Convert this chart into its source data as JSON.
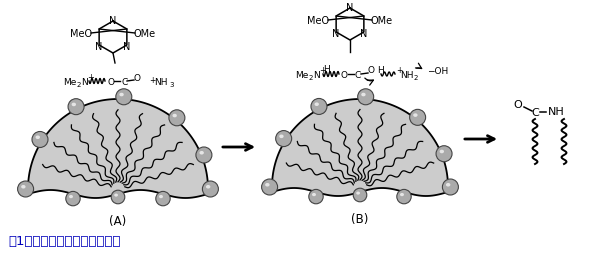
{
  "caption": "図1．　界面での脱水縮合反応",
  "caption_color": "#0000BB",
  "fig_width": 6.0,
  "fig_height": 2.55,
  "bg_color": "#ffffff",
  "sphere_color_face": "#aaaaaa",
  "sphere_color_edge": "#444444",
  "fan_color": "#cccccc",
  "fan_edge_color": "#000000",
  "label_A": "(A)",
  "label_B": "(B)"
}
